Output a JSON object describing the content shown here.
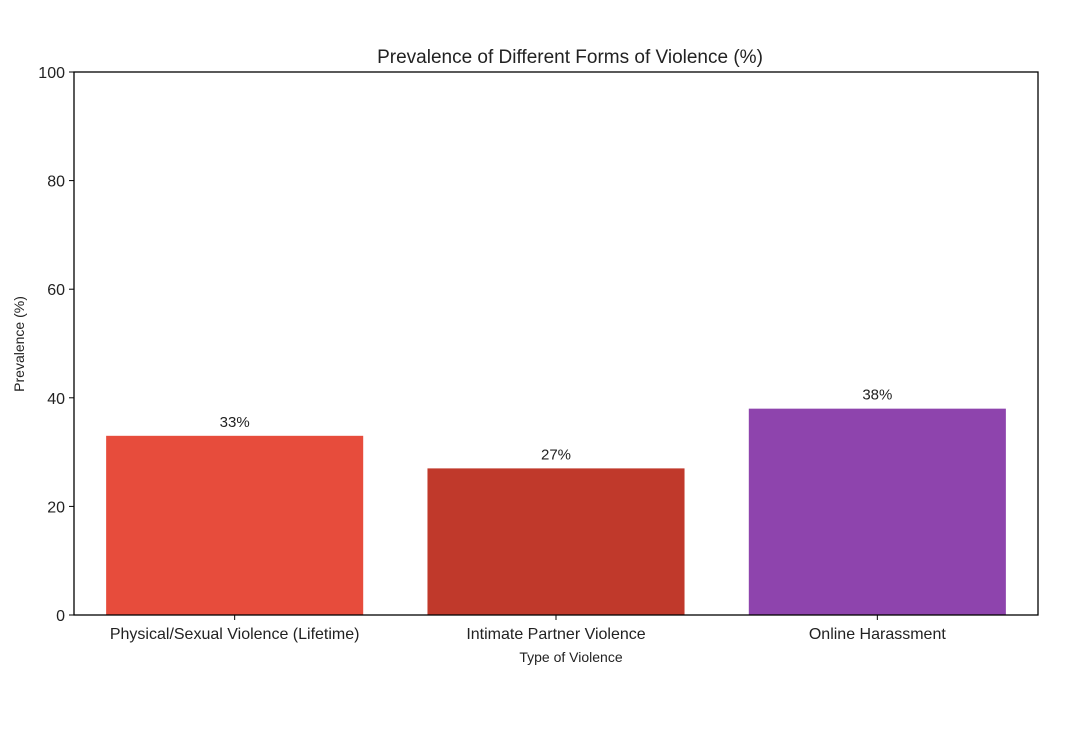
{
  "chart_data": {
    "type": "bar",
    "title": "Prevalence of Different Forms of Violence (%)",
    "xlabel": "Type of Violence",
    "ylabel": "Prevalence (%)",
    "ylim": [
      0,
      100
    ],
    "yticks": [
      0,
      20,
      40,
      60,
      80,
      100
    ],
    "ytick_labels": [
      "0",
      "20",
      "40",
      "60",
      "80",
      "100"
    ],
    "categories": [
      "Physical/Sexual Violence (Lifetime)",
      "Intimate Partner Violence",
      "Online Harassment"
    ],
    "values": [
      33,
      27,
      38
    ],
    "data_labels": [
      "33%",
      "27%",
      "38%"
    ],
    "colors": [
      "#e74c3c",
      "#c0392b",
      "#8e44ad"
    ],
    "grid": false,
    "legend": "none"
  }
}
